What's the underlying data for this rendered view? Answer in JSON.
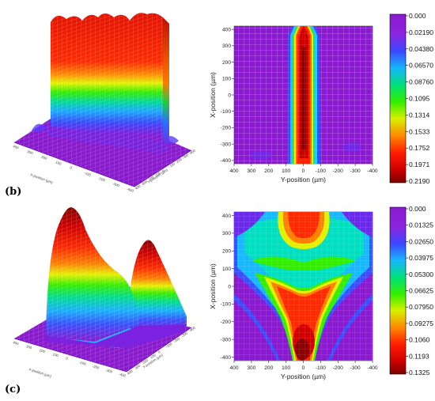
{
  "panels": [
    {
      "label": "(b)"
    },
    {
      "label": "(c)"
    }
  ],
  "chart_data": [
    {
      "type": "heatmap",
      "panel": "(b)",
      "xlabel": "Y-position (µm)",
      "ylabel": "X-position (µm)",
      "x_ticks": [
        "400",
        "300",
        "200",
        "100",
        "0",
        "-100",
        "-200",
        "-300",
        "-400"
      ],
      "y_ticks": [
        "400",
        "300",
        "200",
        "100",
        "0",
        "-100",
        "-200",
        "-300",
        "-400"
      ],
      "xlim": [
        400,
        -400
      ],
      "ylim": [
        -420,
        420
      ],
      "colorbar": {
        "ticks": [
          "0.000",
          "0.02190",
          "0.04380",
          "0.06570",
          "0.08760",
          "0.1095",
          "0.1314",
          "0.1533",
          "0.1752",
          "0.1971",
          "0.2190"
        ],
        "min": 0,
        "max": 0.219
      },
      "surface_3d_axis_labels": [
        "X-position (µm)",
        "Y-position (µm)"
      ]
    },
    {
      "type": "heatmap",
      "panel": "(c)",
      "xlabel": "Y-position (µm)",
      "ylabel": "X-position (µm)",
      "x_ticks": [
        "400",
        "300",
        "200",
        "100",
        "0",
        "-100",
        "-200",
        "-300",
        "-400"
      ],
      "y_ticks": [
        "400",
        "300",
        "200",
        "100",
        "0",
        "-100",
        "-200",
        "-300",
        "-400"
      ],
      "xlim": [
        400,
        -400
      ],
      "ylim": [
        -420,
        420
      ],
      "colorbar": {
        "ticks": [
          "0.000",
          "0.01325",
          "0.02650",
          "0.03975",
          "0.05300",
          "0.06625",
          "0.07950",
          "0.09275",
          "0.1060",
          "0.1193",
          "0.1325"
        ],
        "min": 0,
        "max": 0.1325
      },
      "surface_3d_axis_labels": [
        "X-position (µm)",
        "Y-position (µm)"
      ]
    }
  ]
}
